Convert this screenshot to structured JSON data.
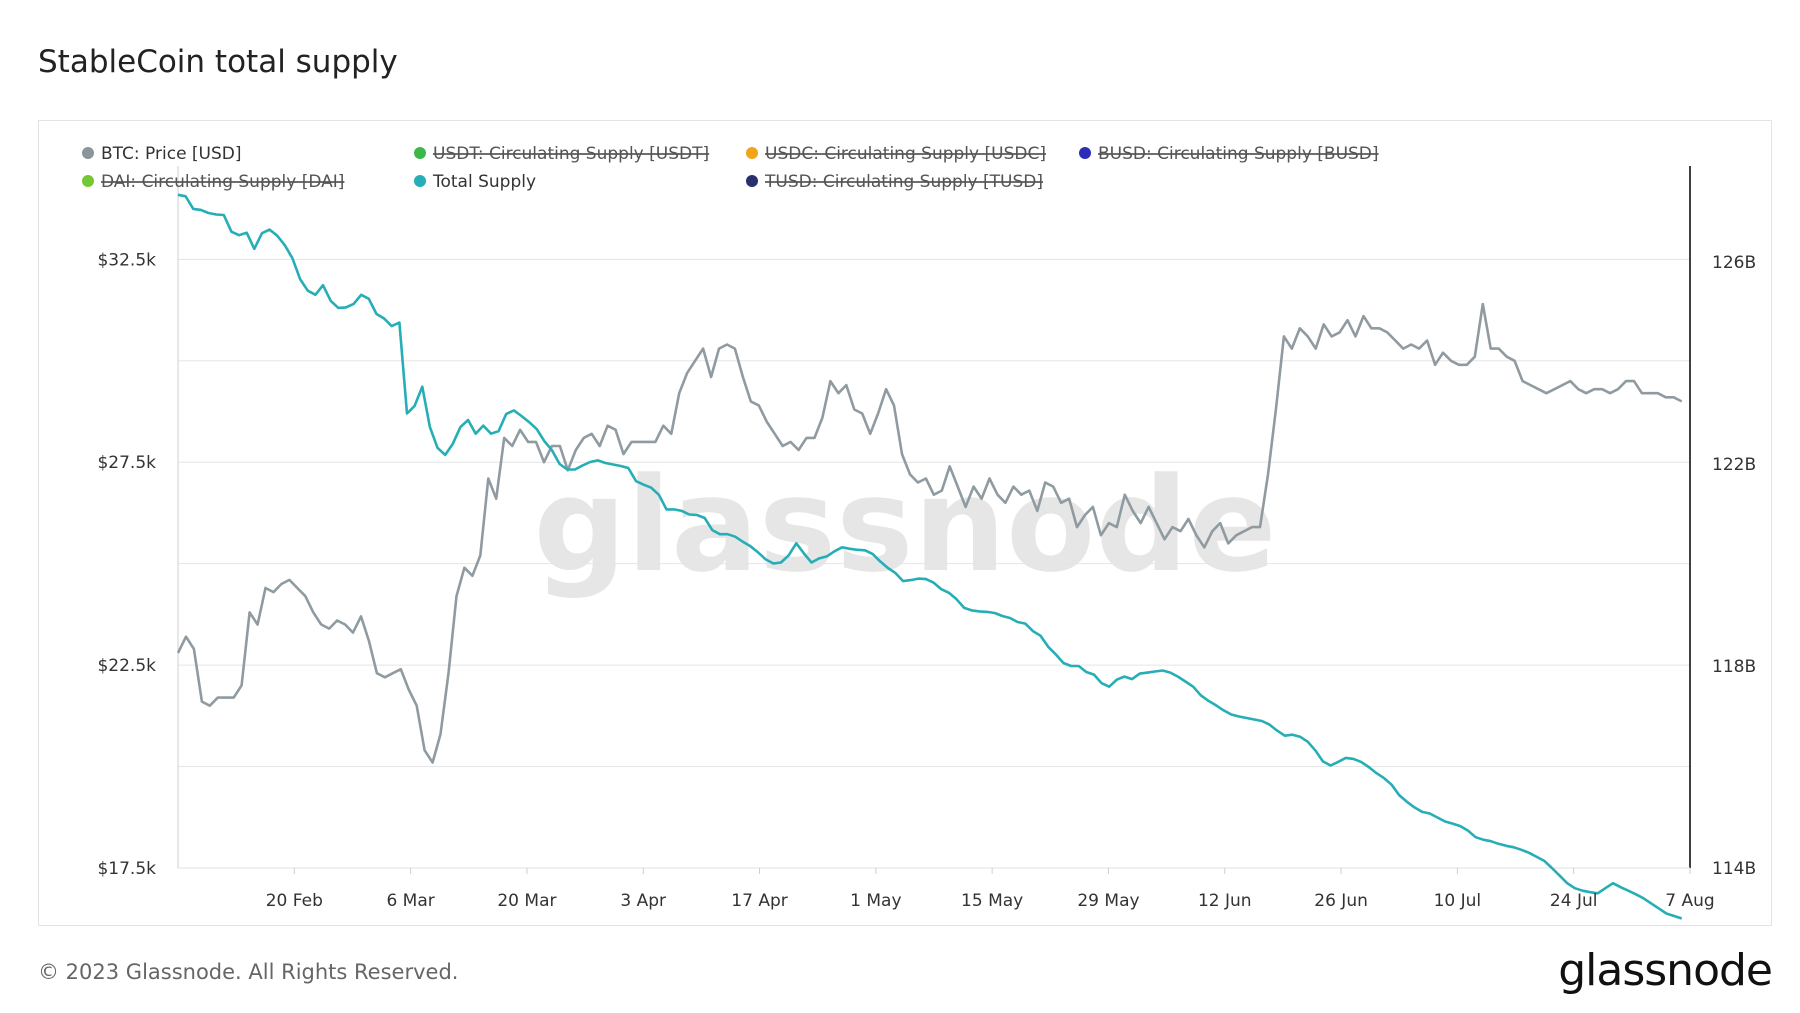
{
  "title": "StableCoin total supply",
  "footer": {
    "copyright": "© 2023 Glassnode. All Rights Reserved.",
    "brand": "glassnode"
  },
  "watermark": "glassnode",
  "colors": {
    "btc": "#8f9ba0",
    "total": "#26aeb6",
    "grid": "#e5e5e5",
    "axis": "#000000"
  },
  "legend": [
    {
      "label": "BTC: Price [USD]",
      "color": "#8a969b",
      "disabled": false
    },
    {
      "label": "USDT: Circulating Supply [USDT]",
      "color": "#3cb84a",
      "disabled": true
    },
    {
      "label": "USDC: Circulating Supply [USDC]",
      "color": "#f2a516",
      "disabled": true
    },
    {
      "label": "BUSD: Circulating Supply [BUSD]",
      "color": "#2b2fb5",
      "disabled": true
    },
    {
      "label": "DAI: Circulating Supply [DAI]",
      "color": "#74c933",
      "disabled": true
    },
    {
      "label": "Total Supply",
      "color": "#26aeb6",
      "disabled": false
    },
    {
      "label": "TUSD: Circulating Supply [TUSD]",
      "color": "#2a2f6e",
      "disabled": true
    }
  ],
  "chart_data": {
    "type": "line",
    "x_ticks": [
      "20 Feb",
      "6 Mar",
      "20 Mar",
      "3 Apr",
      "17 Apr",
      "1 May",
      "15 May",
      "29 May",
      "12 Jun",
      "26 Jun",
      "10 Jul",
      "24 Jul",
      "7 Aug"
    ],
    "x_range": [
      "2023-02-06",
      "2023-08-07"
    ],
    "y_left": {
      "ticks": [
        "$32.5k",
        "$27.5k",
        "$22.5k",
        "$17.5k"
      ],
      "tick_values": [
        32500,
        27500,
        22500,
        17500
      ],
      "range": [
        17500,
        34800
      ]
    },
    "y_right": {
      "ticks": [
        "126B",
        "122B",
        "118B",
        "114B"
      ],
      "tick_values": [
        126,
        122,
        118,
        114
      ],
      "range": [
        114,
        127.9
      ]
    },
    "grid": true,
    "series": [
      {
        "name": "BTC: Price [USD]",
        "axis": "left",
        "values": [
          22800,
          23200,
          22900,
          21600,
          21500,
          21700,
          21700,
          21700,
          22000,
          23800,
          23500,
          24400,
          24300,
          24500,
          24600,
          24400,
          24200,
          23800,
          23500,
          23400,
          23600,
          23500,
          23300,
          23700,
          23100,
          22300,
          22200,
          22300,
          22400,
          21900,
          21500,
          20400,
          20100,
          20800,
          22300,
          24200,
          24900,
          24700,
          25200,
          27100,
          26600,
          28100,
          27900,
          28300,
          28000,
          28000,
          27500,
          27900,
          27900,
          27300,
          27800,
          28100,
          28200,
          27900,
          28400,
          28300,
          27700,
          28000,
          28000,
          28000,
          28000,
          28400,
          28200,
          29200,
          29700,
          30000,
          30300,
          29600,
          30300,
          30400,
          30300,
          29600,
          29000,
          28900,
          28500,
          28200,
          27900,
          28000,
          27800,
          28100,
          28100,
          28600,
          29500,
          29200,
          29400,
          28800,
          28700,
          28200,
          28700,
          29300,
          28900,
          27700,
          27200,
          27000,
          27100,
          26700,
          26800,
          27400,
          26900,
          26400,
          26900,
          26600,
          27100,
          26700,
          26500,
          26900,
          26700,
          26800,
          26300,
          27000,
          26900,
          26500,
          26600,
          25900,
          26200,
          26400,
          25700,
          26000,
          25900,
          26700,
          26300,
          26000,
          26400,
          26000,
          25600,
          25900,
          25800,
          26100,
          25700,
          25400,
          25800,
          26000,
          25500,
          25700,
          25800,
          25900,
          25900,
          27200,
          28800,
          30600,
          30300,
          30800,
          30600,
          30300,
          30900,
          30600,
          30700,
          31000,
          30600,
          31100,
          30800,
          30800,
          30700,
          30500,
          30300,
          30400,
          30300,
          30500,
          29900,
          30200,
          30000,
          29900,
          29900,
          30100,
          31400,
          30300,
          30300,
          30100,
          30000,
          29500,
          29400,
          29300,
          29200,
          29300,
          29400,
          29500,
          29300,
          29200,
          29300,
          29300,
          29200,
          29300,
          29500,
          29500,
          29200,
          29200,
          29200,
          29100,
          29100,
          29000
        ]
      },
      {
        "name": "Total Supply",
        "axis": "right",
        "values": [
          127.33,
          127.3,
          127.05,
          127.03,
          126.97,
          126.94,
          126.93,
          126.6,
          126.53,
          126.58,
          126.26,
          126.57,
          126.64,
          126.52,
          126.33,
          126.07,
          125.66,
          125.43,
          125.35,
          125.54,
          125.23,
          125.09,
          125.1,
          125.17,
          125.35,
          125.27,
          124.97,
          124.88,
          124.73,
          124.8,
          123.0,
          123.15,
          123.53,
          122.73,
          122.32,
          122.18,
          122.4,
          122.73,
          122.87,
          122.6,
          122.76,
          122.6,
          122.65,
          122.99,
          123.06,
          122.95,
          122.83,
          122.69,
          122.45,
          122.27,
          122.0,
          121.89,
          121.89,
          121.97,
          122.04,
          122.07,
          122.02,
          121.99,
          121.96,
          121.92,
          121.66,
          121.59,
          121.53,
          121.39,
          121.1,
          121.1,
          121.07,
          121.0,
          120.99,
          120.93,
          120.69,
          120.61,
          120.61,
          120.56,
          120.46,
          120.37,
          120.25,
          120.11,
          120.03,
          120.05,
          120.19,
          120.43,
          120.23,
          120.05,
          120.13,
          120.17,
          120.27,
          120.35,
          120.32,
          120.3,
          120.29,
          120.22,
          120.07,
          119.94,
          119.84,
          119.68,
          119.7,
          119.73,
          119.72,
          119.65,
          119.52,
          119.45,
          119.32,
          119.15,
          119.1,
          119.08,
          119.07,
          119.05,
          118.99,
          118.95,
          118.87,
          118.84,
          118.69,
          118.6,
          118.38,
          118.23,
          118.06,
          118.0,
          118.0,
          117.88,
          117.83,
          117.66,
          117.59,
          117.73,
          117.79,
          117.74,
          117.85,
          117.87,
          117.89,
          117.91,
          117.87,
          117.79,
          117.69,
          117.59,
          117.42,
          117.31,
          117.22,
          117.12,
          117.04,
          117.0,
          116.97,
          116.94,
          116.91,
          116.84,
          116.72,
          116.62,
          116.64,
          116.6,
          116.5,
          116.33,
          116.11,
          116.03,
          116.1,
          116.18,
          116.16,
          116.1,
          116.0,
          115.88,
          115.78,
          115.65,
          115.44,
          115.31,
          115.2,
          115.11,
          115.08,
          115.0,
          114.92,
          114.88,
          114.83,
          114.74,
          114.61,
          114.56,
          114.53,
          114.48,
          114.44,
          114.41,
          114.36,
          114.3,
          114.22,
          114.14,
          114.0,
          113.85,
          113.7,
          113.6,
          113.55,
          113.52,
          113.5,
          113.6,
          113.7,
          113.62,
          113.55,
          113.48,
          113.4,
          113.3,
          113.2,
          113.1,
          113.05,
          113.0
        ]
      }
    ]
  }
}
